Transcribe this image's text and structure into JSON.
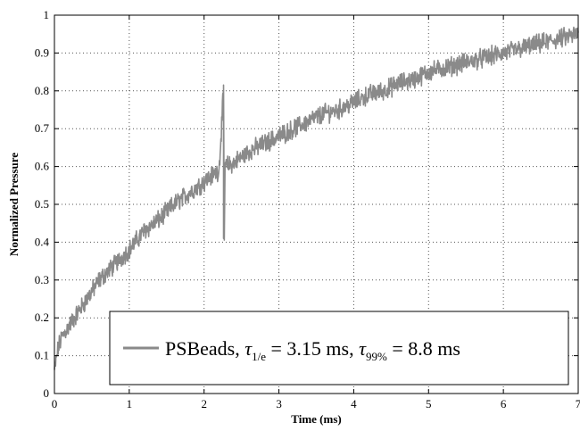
{
  "chart_data": {
    "type": "line",
    "xlabel": "Time (ms)",
    "ylabel": "Normalized Pressure",
    "xlim": [
      0,
      7
    ],
    "ylim": [
      0,
      1
    ],
    "x_ticks": [
      "0",
      "1",
      "2",
      "3",
      "4",
      "5",
      "6",
      "7"
    ],
    "y_ticks": [
      "0",
      "0.1",
      "0.2",
      "0.3",
      "0.4",
      "0.5",
      "0.6",
      "0.7",
      "0.8",
      "0.9",
      "1"
    ],
    "grid": true,
    "legend_position": "bottom-right",
    "colors": {
      "series": "#8a8a8a",
      "axis": "#000000",
      "grid": "#555555"
    },
    "series": [
      {
        "legend": {
          "name": "PSBeads, ",
          "tau1_symbol": "τ",
          "tau1_sub": "1/e",
          "tau1_value": " = 3.15 ms, ",
          "tau99_symbol": "τ",
          "tau99_sub": "99%",
          "tau99_value": " = 8.8 ms"
        },
        "noise_amplitude": 0.02,
        "x": [
          0,
          0.05,
          0.1,
          0.2,
          0.3,
          0.4,
          0.5,
          0.6,
          0.8,
          1.0,
          1.2,
          1.4,
          1.6,
          1.8,
          2.0,
          2.2,
          2.26,
          2.27,
          2.28,
          2.4,
          2.6,
          2.8,
          3.0,
          3.2,
          3.4,
          3.6,
          3.8,
          4.0,
          4.2,
          4.4,
          4.6,
          4.8,
          5.0,
          5.2,
          5.4,
          5.6,
          5.8,
          6.0,
          6.2,
          6.4,
          6.6,
          6.8,
          7.0
        ],
        "y": [
          0.06,
          0.12,
          0.15,
          0.18,
          0.21,
          0.24,
          0.27,
          0.3,
          0.34,
          0.38,
          0.43,
          0.46,
          0.5,
          0.53,
          0.56,
          0.59,
          0.8,
          0.41,
          0.6,
          0.61,
          0.64,
          0.66,
          0.68,
          0.7,
          0.72,
          0.74,
          0.75,
          0.77,
          0.79,
          0.8,
          0.82,
          0.83,
          0.85,
          0.86,
          0.87,
          0.88,
          0.89,
          0.9,
          0.91,
          0.92,
          0.93,
          0.94,
          0.95
        ]
      }
    ]
  }
}
